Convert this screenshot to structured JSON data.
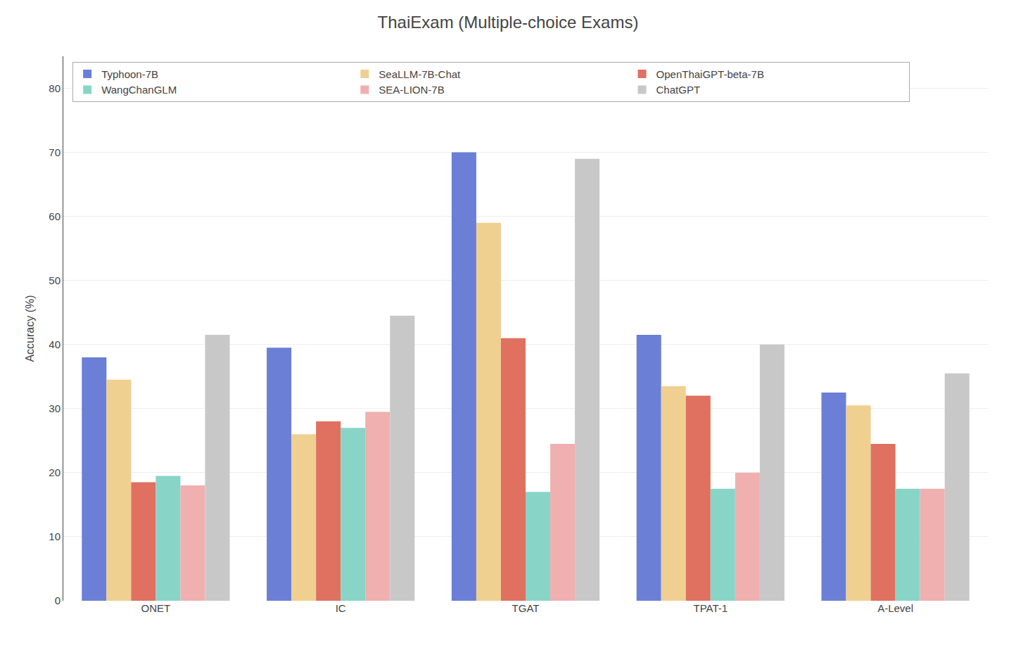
{
  "chart_data": {
    "type": "bar",
    "title": "ThaiExam (Multiple-choice Exams)",
    "ylabel": "Accuracy (%)",
    "categories": [
      "ONET",
      "IC",
      "TGAT",
      "TPAT-1",
      "A-Level"
    ],
    "series": [
      {
        "name": "Typhoon-7B",
        "color": "#6b7fd7",
        "values": [
          38.0,
          39.5,
          70.0,
          41.5,
          32.5
        ]
      },
      {
        "name": "SeaLLM-7B-Chat",
        "color": "#f0d090",
        "values": [
          34.5,
          26.0,
          59.0,
          33.5,
          30.5
        ]
      },
      {
        "name": "OpenThaiGPT-beta-7B",
        "color": "#e07060",
        "values": [
          18.5,
          28.0,
          41.0,
          32.0,
          24.5
        ]
      },
      {
        "name": "WangChanGLM",
        "color": "#88d5c8",
        "values": [
          19.5,
          27.0,
          17.0,
          17.5,
          17.5
        ]
      },
      {
        "name": "SEA-LION-7B",
        "color": "#f0b0b0",
        "values": [
          18.0,
          29.5,
          24.5,
          20.0,
          17.5
        ]
      },
      {
        "name": "ChatGPT",
        "color": "#c8c8c8",
        "values": [
          41.5,
          44.5,
          69.0,
          40.0,
          35.5
        ]
      }
    ],
    "ylim": [
      0,
      85
    ],
    "yticks": [
      0,
      10,
      20,
      30,
      40,
      50,
      60,
      70,
      80
    ],
    "grid": true,
    "legend": "upper left"
  }
}
